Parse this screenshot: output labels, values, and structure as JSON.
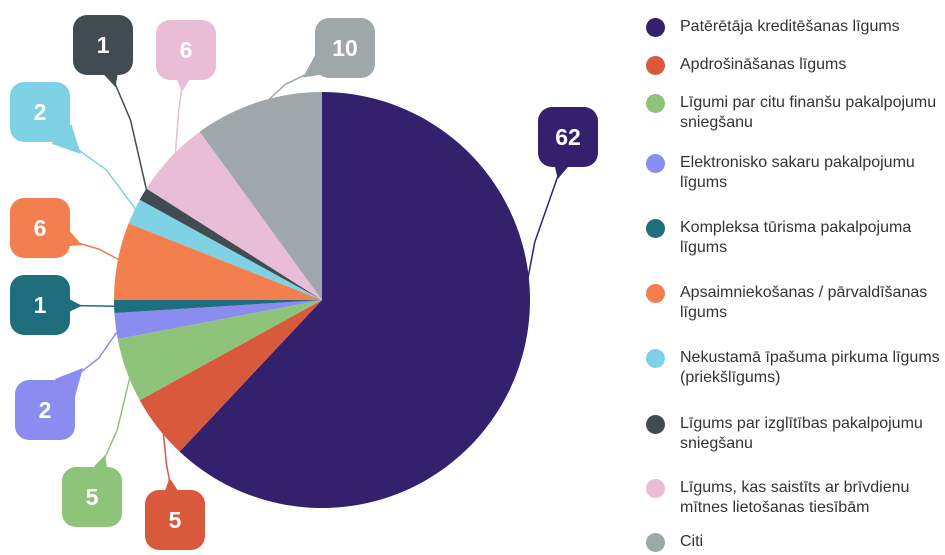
{
  "chart_data": {
    "type": "pie",
    "categories": [
      "Patērētāja kreditēšanas līgums",
      "Apdrošināšanas līgums",
      "Līgumi par citu finanšu pakalpojumu sniegšanu",
      "Elektronisko sakaru pakalpojumu līgums",
      "Kompleksa tūrisma pakalpojuma līgums",
      "Apsaimniekošanas / pārvaldīšanas līgums",
      "Nekustamā īpašuma pirkuma līgums (priekšlīgums)",
      "Līgums par izglītības pakalpojumu sniegšanu",
      "Līgums, kas saistīts ar brīvdienu mītnes lietošanas tiesībām",
      "Citi"
    ],
    "values": [
      62,
      5,
      5,
      2,
      1,
      6,
      2,
      1,
      6,
      10
    ],
    "colors": [
      "#34216e",
      "#d9593c",
      "#8dc47a",
      "#8b8cf0",
      "#1f6e7e",
      "#f47f4e",
      "#7fd2e3",
      "#414c52",
      "#e8bdd5",
      "#9ea8aa"
    ]
  }
}
